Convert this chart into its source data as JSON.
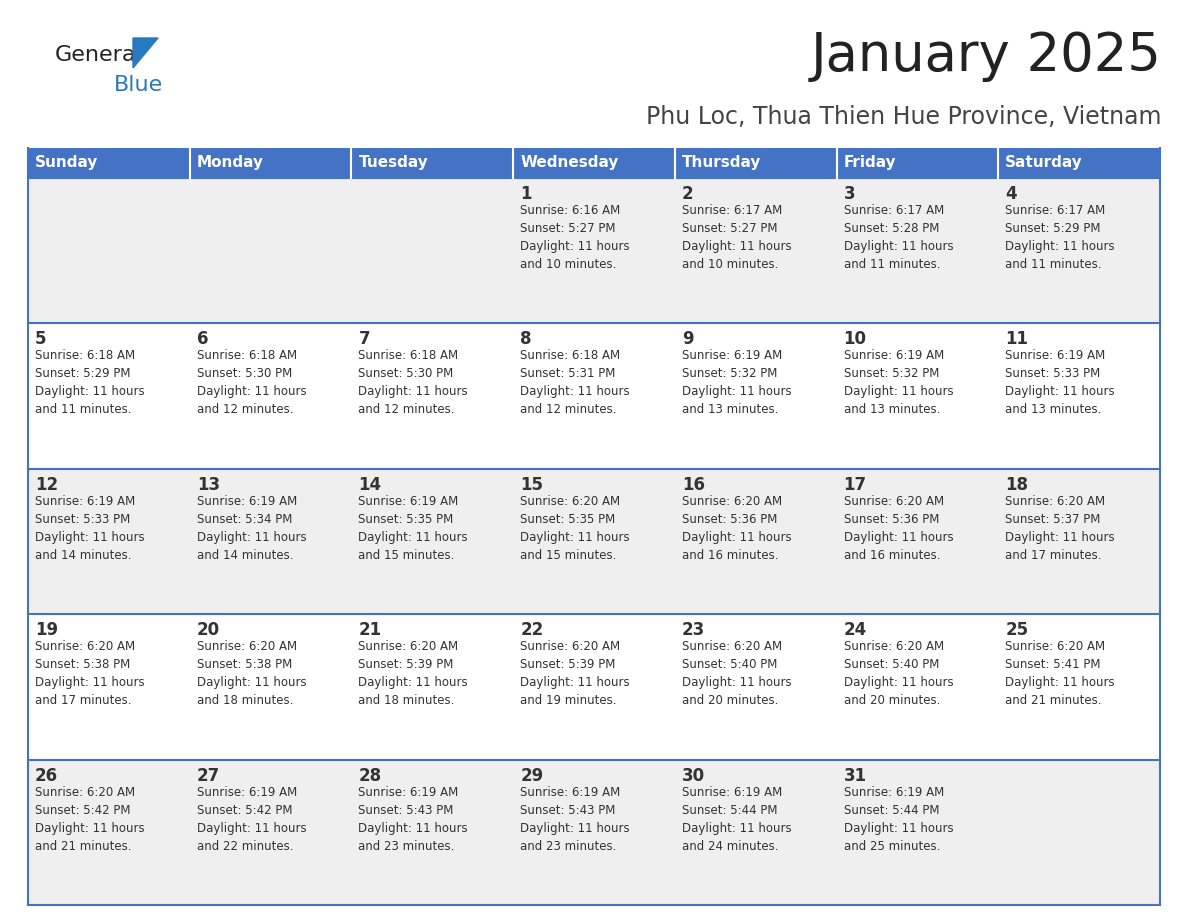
{
  "title": "January 2025",
  "subtitle": "Phu Loc, Thua Thien Hue Province, Vietnam",
  "header_bg": "#4472C4",
  "header_text_color": "#FFFFFF",
  "day_names": [
    "Sunday",
    "Monday",
    "Tuesday",
    "Wednesday",
    "Thursday",
    "Friday",
    "Saturday"
  ],
  "alt_row_bg": "#EFEFEF",
  "normal_row_bg": "#FFFFFF",
  "cell_border_color": "#4472C4",
  "day_number_color": "#333333",
  "info_text_color": "#333333",
  "logo_general_color": "#222222",
  "logo_blue_color": "#2979BE",
  "calendar": [
    [
      {
        "day": "",
        "info": ""
      },
      {
        "day": "",
        "info": ""
      },
      {
        "day": "",
        "info": ""
      },
      {
        "day": "1",
        "info": "Sunrise: 6:16 AM\nSunset: 5:27 PM\nDaylight: 11 hours\nand 10 minutes."
      },
      {
        "day": "2",
        "info": "Sunrise: 6:17 AM\nSunset: 5:27 PM\nDaylight: 11 hours\nand 10 minutes."
      },
      {
        "day": "3",
        "info": "Sunrise: 6:17 AM\nSunset: 5:28 PM\nDaylight: 11 hours\nand 11 minutes."
      },
      {
        "day": "4",
        "info": "Sunrise: 6:17 AM\nSunset: 5:29 PM\nDaylight: 11 hours\nand 11 minutes."
      }
    ],
    [
      {
        "day": "5",
        "info": "Sunrise: 6:18 AM\nSunset: 5:29 PM\nDaylight: 11 hours\nand 11 minutes."
      },
      {
        "day": "6",
        "info": "Sunrise: 6:18 AM\nSunset: 5:30 PM\nDaylight: 11 hours\nand 12 minutes."
      },
      {
        "day": "7",
        "info": "Sunrise: 6:18 AM\nSunset: 5:30 PM\nDaylight: 11 hours\nand 12 minutes."
      },
      {
        "day": "8",
        "info": "Sunrise: 6:18 AM\nSunset: 5:31 PM\nDaylight: 11 hours\nand 12 minutes."
      },
      {
        "day": "9",
        "info": "Sunrise: 6:19 AM\nSunset: 5:32 PM\nDaylight: 11 hours\nand 13 minutes."
      },
      {
        "day": "10",
        "info": "Sunrise: 6:19 AM\nSunset: 5:32 PM\nDaylight: 11 hours\nand 13 minutes."
      },
      {
        "day": "11",
        "info": "Sunrise: 6:19 AM\nSunset: 5:33 PM\nDaylight: 11 hours\nand 13 minutes."
      }
    ],
    [
      {
        "day": "12",
        "info": "Sunrise: 6:19 AM\nSunset: 5:33 PM\nDaylight: 11 hours\nand 14 minutes."
      },
      {
        "day": "13",
        "info": "Sunrise: 6:19 AM\nSunset: 5:34 PM\nDaylight: 11 hours\nand 14 minutes."
      },
      {
        "day": "14",
        "info": "Sunrise: 6:19 AM\nSunset: 5:35 PM\nDaylight: 11 hours\nand 15 minutes."
      },
      {
        "day": "15",
        "info": "Sunrise: 6:20 AM\nSunset: 5:35 PM\nDaylight: 11 hours\nand 15 minutes."
      },
      {
        "day": "16",
        "info": "Sunrise: 6:20 AM\nSunset: 5:36 PM\nDaylight: 11 hours\nand 16 minutes."
      },
      {
        "day": "17",
        "info": "Sunrise: 6:20 AM\nSunset: 5:36 PM\nDaylight: 11 hours\nand 16 minutes."
      },
      {
        "day": "18",
        "info": "Sunrise: 6:20 AM\nSunset: 5:37 PM\nDaylight: 11 hours\nand 17 minutes."
      }
    ],
    [
      {
        "day": "19",
        "info": "Sunrise: 6:20 AM\nSunset: 5:38 PM\nDaylight: 11 hours\nand 17 minutes."
      },
      {
        "day": "20",
        "info": "Sunrise: 6:20 AM\nSunset: 5:38 PM\nDaylight: 11 hours\nand 18 minutes."
      },
      {
        "day": "21",
        "info": "Sunrise: 6:20 AM\nSunset: 5:39 PM\nDaylight: 11 hours\nand 18 minutes."
      },
      {
        "day": "22",
        "info": "Sunrise: 6:20 AM\nSunset: 5:39 PM\nDaylight: 11 hours\nand 19 minutes."
      },
      {
        "day": "23",
        "info": "Sunrise: 6:20 AM\nSunset: 5:40 PM\nDaylight: 11 hours\nand 20 minutes."
      },
      {
        "day": "24",
        "info": "Sunrise: 6:20 AM\nSunset: 5:40 PM\nDaylight: 11 hours\nand 20 minutes."
      },
      {
        "day": "25",
        "info": "Sunrise: 6:20 AM\nSunset: 5:41 PM\nDaylight: 11 hours\nand 21 minutes."
      }
    ],
    [
      {
        "day": "26",
        "info": "Sunrise: 6:20 AM\nSunset: 5:42 PM\nDaylight: 11 hours\nand 21 minutes."
      },
      {
        "day": "27",
        "info": "Sunrise: 6:19 AM\nSunset: 5:42 PM\nDaylight: 11 hours\nand 22 minutes."
      },
      {
        "day": "28",
        "info": "Sunrise: 6:19 AM\nSunset: 5:43 PM\nDaylight: 11 hours\nand 23 minutes."
      },
      {
        "day": "29",
        "info": "Sunrise: 6:19 AM\nSunset: 5:43 PM\nDaylight: 11 hours\nand 23 minutes."
      },
      {
        "day": "30",
        "info": "Sunrise: 6:19 AM\nSunset: 5:44 PM\nDaylight: 11 hours\nand 24 minutes."
      },
      {
        "day": "31",
        "info": "Sunrise: 6:19 AM\nSunset: 5:44 PM\nDaylight: 11 hours\nand 25 minutes."
      },
      {
        "day": "",
        "info": ""
      }
    ]
  ]
}
